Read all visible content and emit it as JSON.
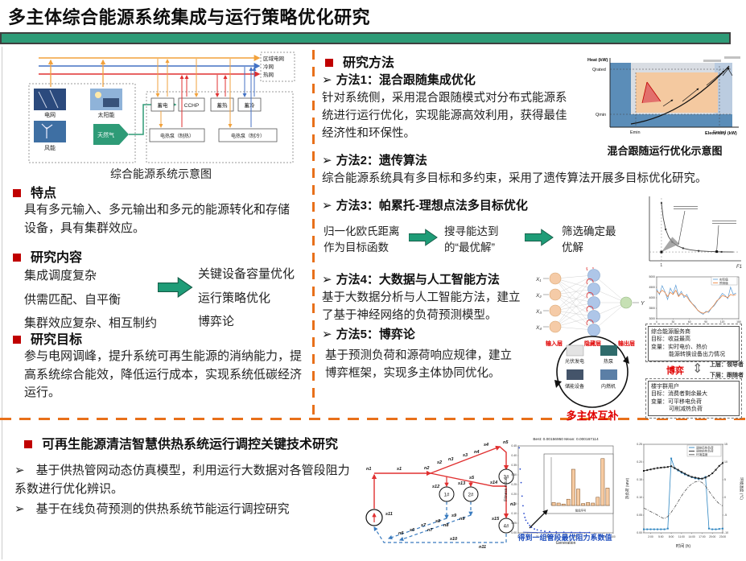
{
  "theme": {
    "accent_green": "#1E9C77",
    "divider_orange": "#E8701A",
    "accent_red": "#C00000"
  },
  "header": {
    "title": "多主体综合能源系统集成与运行策略优化研究"
  },
  "left": {
    "diagram": {
      "caption": "综合能源系统示意图",
      "buses": [
        "区域电网",
        "冷网",
        "热网"
      ],
      "sources": [
        "电网",
        "太阳能",
        "风能",
        "天然气"
      ],
      "devices": [
        "蓄电",
        "CCHP",
        "蓄热",
        "蓄冷",
        "电热泵（制热）",
        "电热泵（制冷）"
      ]
    },
    "features": {
      "heading": "特点",
      "body": "具有多元输入、多元输出和多元的能源转化和存储设备，具有集群效应。"
    },
    "content": {
      "heading": "研究内容",
      "problems": [
        "集成调度复杂",
        "供需匹配、自平衡",
        "集群效应复杂、相互制约"
      ],
      "solutions": [
        "关键设备容量优化",
        "运行策略优化",
        "博弈论"
      ]
    },
    "goal": {
      "heading": "研究目标",
      "body": "参与电网调峰，提升系统可再生能源的消纳能力，提高系统综合能效，降低运行成本，实现系统低碳经济运行。"
    }
  },
  "right": {
    "heading": "研究方法",
    "method1": {
      "title": "方法1：混合跟随集成优化",
      "body": "针对系统侧，采用混合跟随模式对分布式能源系统进行运行优化，实现能源高效利用，获得最佳经济性和环保性。"
    },
    "hybrid": {
      "caption": "混合跟随运行优化示意图",
      "ylabel": "Heat (kW)",
      "xlabel": "Electricity (kW)",
      "q_rated": "Qrated",
      "q_min": "Qmin",
      "e_min": "Emin",
      "e_rated": "Erated"
    },
    "method2": {
      "title": "方法2：遗传算法",
      "body": "综合能源系统具有多目标和多约束，采用了遗传算法开展多目标优化研究。"
    },
    "method3": {
      "title": "方法3：帕累托-理想点法多目标优化",
      "steps": [
        "归一化欧氏距离作为目标函数",
        "搜寻能达到的“最优解”",
        "筛选确定最优解"
      ]
    },
    "method4": {
      "title": "方法4：大数据与人工智能方法",
      "body": "基于大数据分析与人工智能方法，建立了基于神经网络的负荷预测模型。"
    },
    "nn": {
      "inputs": [
        "X₁",
        "X₂",
        "X₃",
        "X₄"
      ],
      "output": "Y",
      "layers": [
        "输入层",
        "隐藏层",
        "输出层"
      ]
    },
    "method5": {
      "title": "方法5：博弈论",
      "body": "基于预测负荷和源荷响应规律，建立博弈框架，实现多主体协同优化。"
    },
    "circle": {
      "items": [
        "光伏发电",
        "热泵",
        "储能设备",
        "内燃机"
      ],
      "caption": "多主体互补"
    },
    "game": {
      "upper": {
        "lines": [
          "综合能源服务商",
          "目标：收益最高",
          "变量：实时电价、热价",
          "能源转换设备出力情况"
        ],
        "role": "上层：领导者"
      },
      "label": "博弈",
      "lower": {
        "lines": [
          "楼宇群用户",
          "目标：消费者剩余最大",
          "变量：可平移电负荷",
          "可削减热负荷"
        ],
        "role": "下层：跟随者"
      }
    }
  },
  "bottom": {
    "heading": "可再生能源清洁智慧供热系统运行调控关键技术研究",
    "bullets": [
      "基于供热管网动态仿真模型，利用运行大数据对各管段阻力系数进行优化辨识。",
      "基于在线负荷预测的供热系统节能运行调控研究"
    ],
    "annotation": "得到一组管段最优阻力系数值",
    "network": {
      "units": [
        "1#",
        "2#",
        "3#",
        "4#"
      ],
      "node_labels": [
        "n1",
        "n2",
        "n3",
        "n4",
        "n5",
        "n6",
        "n7",
        "n8",
        "n9",
        "n10",
        "n11"
      ],
      "segment_labels": [
        "s1",
        "s2",
        "s3",
        "s4",
        "s5",
        "s6",
        "s7",
        "s8",
        "s9",
        "s10",
        "s11",
        "s12",
        "s13",
        "s14",
        "s15"
      ]
    }
  },
  "chart_data": [
    {
      "id": "pareto",
      "type": "line",
      "x": [
        1,
        1.15,
        1.35,
        1.6,
        1.9,
        2.3,
        2.8,
        3.4,
        4.1,
        5.0,
        6.0,
        7.0
      ],
      "y": [
        4.6,
        3.4,
        2.5,
        1.9,
        1.5,
        1.2,
        1.0,
        0.87,
        0.79,
        0.74,
        0.71,
        0.7
      ],
      "ideal_x": 1,
      "ideal_y": 0.7,
      "xlabel": "F1",
      "xlim": [
        0,
        7.5
      ],
      "ylim": [
        0,
        5
      ]
    },
    {
      "id": "load_forecast",
      "type": "line",
      "xlabel": "时间/天",
      "ylim": [
        3000,
        5000
      ],
      "xlim": [
        0,
        150
      ],
      "series": [
        {
          "name": "实际值",
          "color": "#5B9BD5",
          "values": [
            4420,
            4150,
            4580,
            4300,
            3920,
            4460,
            4210,
            4600,
            4100,
            4310,
            4010,
            4160,
            3900,
            3720,
            3610,
            3400,
            3290,
            3210,
            3360,
            3300,
            3510,
            3620,
            3810,
            4010,
            4210,
            4110,
            3960,
            4510,
            4160,
            4230
          ]
        },
        {
          "name": "预测值",
          "color": "#ED7D31",
          "values": [
            4330,
            4210,
            4360,
            4260,
            4060,
            4260,
            4160,
            4360,
            4060,
            4210,
            4110,
            4060,
            3860,
            3710,
            3560,
            3410,
            3310,
            3260,
            3310,
            3360,
            3510,
            3660,
            3860,
            3960,
            4110,
            4060,
            4010,
            4160,
            4110,
            4160
          ]
        }
      ]
    },
    {
      "id": "ga_convergence",
      "type": "scatter",
      "title": "Best: 0.00156950 Mean: 0.000167114",
      "xlabel": "Generation",
      "ylabel": "Fitness value",
      "xlim": [
        0,
        100
      ],
      "ylim": [
        0,
        0.45
      ],
      "points": [
        [
          1,
          0.44
        ],
        [
          2,
          0.33
        ],
        [
          3,
          0.26
        ],
        [
          4,
          0.19
        ],
        [
          5,
          0.14
        ],
        [
          6,
          0.1
        ],
        [
          7,
          0.08
        ],
        [
          8,
          0.065
        ],
        [
          10,
          0.05
        ],
        [
          12,
          0.038
        ],
        [
          14,
          0.028
        ],
        [
          17,
          0.02
        ],
        [
          20,
          0.015
        ],
        [
          24,
          0.011
        ],
        [
          28,
          0.008
        ],
        [
          33,
          0.006
        ],
        [
          40,
          0.004
        ],
        [
          48,
          0.003
        ],
        [
          56,
          0.0025
        ],
        [
          65,
          0.002
        ],
        [
          75,
          0.0017
        ]
      ]
    },
    {
      "id": "resistance_bars",
      "type": "bar",
      "xlabel": "管段序号",
      "values": [
        0.06,
        0.05,
        0.03,
        0.13,
        0.75,
        0.34,
        0.04,
        0.06,
        0.05,
        0.17,
        0.97,
        0.36
      ],
      "ylim": [
        0,
        1.0
      ]
    },
    {
      "id": "heat_load",
      "type": "line",
      "xlabel": "时间 (h)",
      "ylabel_left": "热负荷 (MW)",
      "ylabel_right": "环境温度 (℃)",
      "xticks": [
        "2:00",
        "5:00",
        "8:00",
        "11:00",
        "14:00",
        "17:00",
        "20:00",
        "23:00"
      ],
      "ylim_left": [
        0,
        0.25
      ],
      "ylim_right": [
        -10,
        15
      ],
      "series": [
        {
          "name": "调控后热负荷",
          "color": "#2E86C1",
          "axis": "left",
          "marker": true,
          "values": [
            0.01,
            0.01,
            0.01,
            0.01,
            0.01,
            0.01,
            0.01,
            0.012,
            0.21,
            0.182,
            0.176,
            0.17,
            0.165,
            0.161,
            0.157,
            0.154,
            0.152,
            0.153,
            0.158,
            0.012,
            0.01,
            0.01,
            0.011,
            0.012
          ]
        },
        {
          "name": "调控前热负荷",
          "color": "#1a1a1a",
          "axis": "left",
          "marker": true,
          "values": [
            0.175,
            0.177,
            0.179,
            0.181,
            0.183,
            0.184,
            0.185,
            0.186,
            0.188,
            0.183,
            0.178,
            0.172,
            0.167,
            0.162,
            0.158,
            0.156,
            0.154,
            0.153,
            0.156,
            0.161,
            0.168,
            0.178,
            0.189,
            0.197
          ]
        },
        {
          "name": "环境温度",
          "color": "#555555",
          "axis": "right",
          "dash": true,
          "values": [
            -3,
            -3.5,
            -4,
            -4.5,
            -5,
            -5.6,
            -6,
            -5.4,
            -4.2,
            -2.8,
            -1.2,
            0.4,
            1.8,
            3.0,
            3.8,
            4.4,
            4.6,
            4.2,
            3.2,
            1.8,
            0.4,
            -0.8,
            -1.8,
            -2.4
          ]
        }
      ]
    }
  ]
}
